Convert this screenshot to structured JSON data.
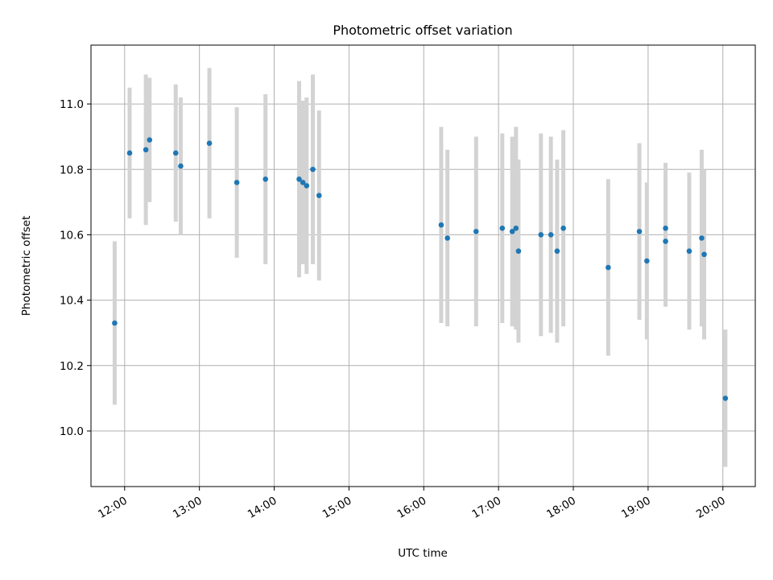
{
  "chart_data": {
    "type": "scatter",
    "title": "Photometric offset variation",
    "xlabel": "UTC time",
    "ylabel": "Photometric offset",
    "x_tick_labels": [
      "12:00",
      "13:00",
      "14:00",
      "15:00",
      "16:00",
      "17:00",
      "18:00",
      "19:00",
      "20:00"
    ],
    "y_tick_labels": [
      "10.0",
      "10.2",
      "10.4",
      "10.6",
      "10.8",
      "11.0"
    ],
    "xlim": [
      "11:33",
      "20:26"
    ],
    "ylim": [
      9.83,
      11.18
    ],
    "grid": true,
    "colors": {
      "points": "#1f77b4",
      "errorbars": "#d3d3d3"
    },
    "series": [
      {
        "points": [
          {
            "x": "11:52",
            "y": 10.33,
            "yerr": 0.25
          },
          {
            "x": "12:04",
            "y": 10.85,
            "yerr": 0.2
          },
          {
            "x": "12:17",
            "y": 10.86,
            "yerr": 0.23
          },
          {
            "x": "12:20",
            "y": 10.89,
            "yerr": 0.19
          },
          {
            "x": "12:41",
            "y": 10.85,
            "yerr": 0.21
          },
          {
            "x": "12:45",
            "y": 10.81,
            "yerr": 0.21
          },
          {
            "x": "13:08",
            "y": 10.88,
            "yerr": 0.23
          },
          {
            "x": "13:30",
            "y": 10.76,
            "yerr": 0.23
          },
          {
            "x": "13:53",
            "y": 10.77,
            "yerr": 0.26
          },
          {
            "x": "14:20",
            "y": 10.77,
            "yerr": 0.3
          },
          {
            "x": "14:23",
            "y": 10.76,
            "yerr": 0.25
          },
          {
            "x": "14:26",
            "y": 10.75,
            "yerr": 0.27
          },
          {
            "x": "14:31",
            "y": 10.8,
            "yerr": 0.29
          },
          {
            "x": "14:36",
            "y": 10.72,
            "yerr": 0.26
          },
          {
            "x": "16:14",
            "y": 10.63,
            "yerr": 0.3
          },
          {
            "x": "16:19",
            "y": 10.59,
            "yerr": 0.27
          },
          {
            "x": "16:42",
            "y": 10.61,
            "yerr": 0.29
          },
          {
            "x": "17:03",
            "y": 10.62,
            "yerr": 0.29
          },
          {
            "x": "17:11",
            "y": 10.61,
            "yerr": 0.29
          },
          {
            "x": "17:14",
            "y": 10.62,
            "yerr": 0.31
          },
          {
            "x": "17:16",
            "y": 10.55,
            "yerr": 0.28
          },
          {
            "x": "17:34",
            "y": 10.6,
            "yerr": 0.31
          },
          {
            "x": "17:42",
            "y": 10.6,
            "yerr": 0.3
          },
          {
            "x": "17:47",
            "y": 10.55,
            "yerr": 0.28
          },
          {
            "x": "17:52",
            "y": 10.62,
            "yerr": 0.3
          },
          {
            "x": "18:28",
            "y": 10.5,
            "yerr": 0.27
          },
          {
            "x": "18:53",
            "y": 10.61,
            "yerr": 0.27
          },
          {
            "x": "18:59",
            "y": 10.52,
            "yerr": 0.24
          },
          {
            "x": "19:14",
            "y": 10.62,
            "yerr": 0.2
          },
          {
            "x": "19:14",
            "y": 10.58,
            "yerr": 0.2
          },
          {
            "x": "19:33",
            "y": 10.55,
            "yerr": 0.24
          },
          {
            "x": "19:43",
            "y": 10.59,
            "yerr": 0.27
          },
          {
            "x": "19:45",
            "y": 10.54,
            "yerr": 0.26
          },
          {
            "x": "20:02",
            "y": 10.1,
            "yerr": 0.21
          }
        ]
      }
    ]
  }
}
